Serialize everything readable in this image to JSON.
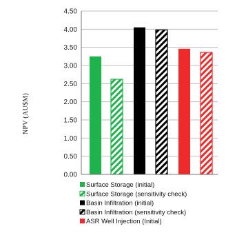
{
  "chart_data": {
    "type": "bar",
    "ylabel": "NPV (AU$M)",
    "ylim": [
      0,
      4.5
    ],
    "yticks": [
      "0.00",
      "0.50",
      "1.00",
      "1.50",
      "2.00",
      "2.50",
      "3.00",
      "3.50",
      "4.00",
      "4.50"
    ],
    "grid": true,
    "legend_position": "bottom",
    "series": [
      {
        "name": "Surface Storage (initial)",
        "value": 3.25,
        "color": "#1fb34b",
        "pattern": "solid"
      },
      {
        "name": "Surface Storage (sensitivity check)",
        "value": 2.62,
        "color": "#1fb34b",
        "pattern": "hatched"
      },
      {
        "name": "Basin Infiltration (initial)",
        "value": 4.05,
        "color": "#000000",
        "pattern": "solid"
      },
      {
        "name": "Basin Infiltration (sensitivity check)",
        "value": 3.98,
        "color": "#000000",
        "pattern": "hatched"
      },
      {
        "name": "ASR Well Injection (Initial)",
        "value": 3.46,
        "color": "#ee2a2a",
        "pattern": "solid"
      },
      {
        "name": "",
        "value": 3.36,
        "color": "#ee2a2a",
        "pattern": "hatched"
      }
    ]
  }
}
